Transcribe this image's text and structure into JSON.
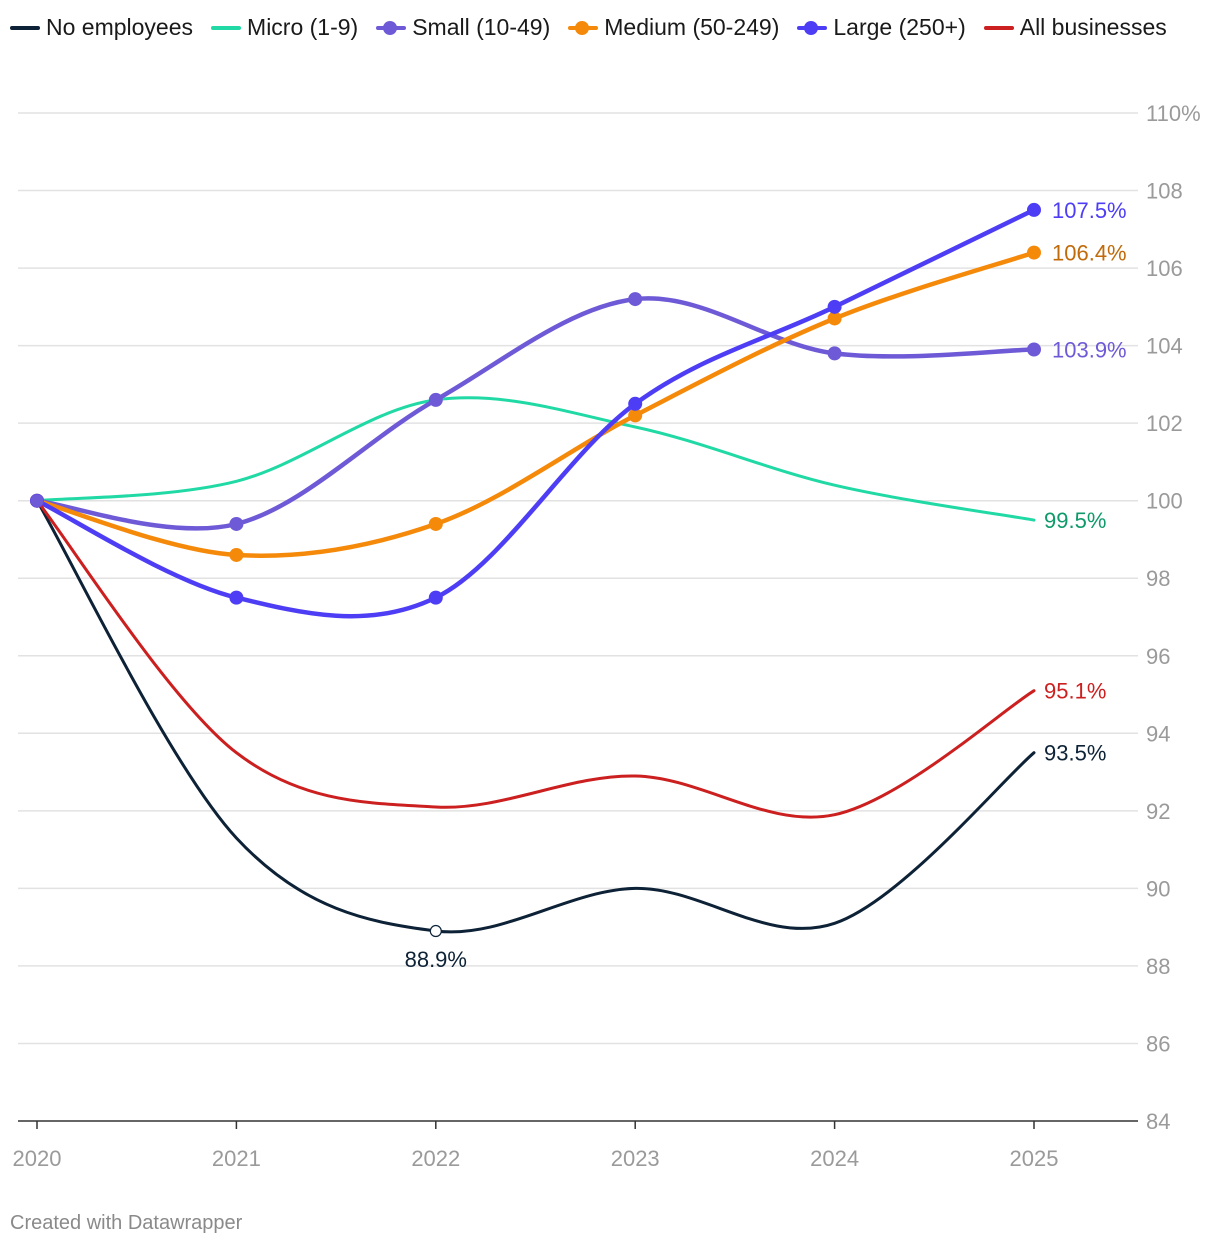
{
  "chart_data": {
    "type": "line",
    "title": "",
    "xlabel": "",
    "ylabel": "",
    "x": [
      "2020",
      "2021",
      "2022",
      "2023",
      "2024",
      "2025"
    ],
    "ylim": [
      84,
      110
    ],
    "yticks": [
      84,
      86,
      88,
      90,
      92,
      94,
      96,
      98,
      100,
      102,
      104,
      106,
      108,
      110
    ],
    "ytick_labels": [
      "84",
      "86",
      "88",
      "90",
      "92",
      "94",
      "96",
      "98",
      "100",
      "102",
      "104",
      "106",
      "108",
      "110%"
    ],
    "grid": true,
    "legend_position": "top-left",
    "series": [
      {
        "name": "No employees",
        "color": "#0d2236",
        "markers": false,
        "values": [
          100,
          91.3,
          88.9,
          90.0,
          89.1,
          93.5
        ]
      },
      {
        "name": "Micro (1-9)",
        "color": "#21d9a5",
        "markers": false,
        "values": [
          100,
          100.5,
          102.6,
          101.9,
          100.4,
          99.5
        ]
      },
      {
        "name": "Small (10-49)",
        "color": "#6e5ad6",
        "markers": true,
        "values": [
          100,
          99.4,
          102.6,
          105.2,
          103.8,
          103.9
        ]
      },
      {
        "name": "Medium (50-249)",
        "color": "#f5890a",
        "markers": true,
        "values": [
          100,
          98.6,
          99.4,
          102.2,
          104.7,
          106.4
        ]
      },
      {
        "name": "Large (250+)",
        "color": "#4d3ef5",
        "markers": true,
        "values": [
          100,
          97.5,
          97.5,
          102.5,
          105.0,
          107.5
        ]
      },
      {
        "name": "All businesses",
        "color": "#cc1f1f",
        "markers": false,
        "values": [
          100,
          93.5,
          92.1,
          92.9,
          91.9,
          95.1
        ]
      }
    ],
    "annotations": [
      {
        "series": "Large (250+)",
        "text": "107.5%",
        "color": "#4d3ef5"
      },
      {
        "series": "Medium (50-249)",
        "text": "106.4%",
        "color": "#c06a0a"
      },
      {
        "series": "Small (10-49)",
        "text": "103.9%",
        "color": "#6e5ad6"
      },
      {
        "series": "Micro (1-9)",
        "text": "99.5%",
        "color": "#0f9a6a"
      },
      {
        "series": "All businesses",
        "text": "95.1%",
        "color": "#cc1f1f"
      },
      {
        "series": "No employees",
        "text": "93.5%",
        "color": "#0d2236"
      },
      {
        "series": "No employees",
        "text": "88.9%",
        "color": "#0d2236",
        "year": "2022",
        "value": 88.9
      }
    ]
  },
  "footer": {
    "credit": "Created with Datawrapper"
  }
}
